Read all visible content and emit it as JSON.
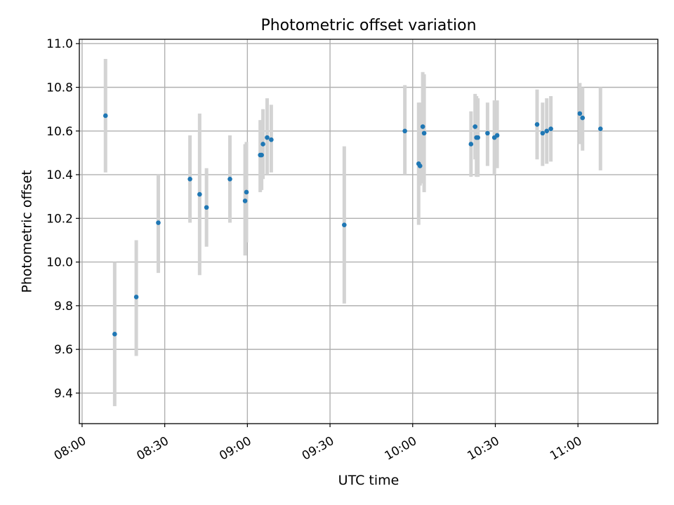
{
  "chart_data": {
    "type": "scatter",
    "title": "Photometric offset variation",
    "xlabel": "UTC time",
    "ylabel": "Photometric offset",
    "xlim": [
      "07:59",
      "11:29"
    ],
    "ylim": [
      9.26,
      11.02
    ],
    "grid": true,
    "x_ticks": [
      "08:00",
      "08:30",
      "09:00",
      "09:30",
      "10:00",
      "10:30",
      "11:00"
    ],
    "y_ticks": [
      "9.4",
      "9.6",
      "9.8",
      "10.0",
      "10.2",
      "10.4",
      "10.6",
      "10.8",
      "11.0"
    ],
    "colors": {
      "point": "#1f77b4",
      "errorbar": "#d3d3d3",
      "grid": "#b0b0b0",
      "axes": "#000000"
    },
    "points": [
      {
        "x": "08:08:30",
        "y": 10.67,
        "ylow": 10.41,
        "yhigh": 10.93
      },
      {
        "x": "08:11:50",
        "y": 9.67,
        "ylow": 9.34,
        "yhigh": 10.0
      },
      {
        "x": "08:19:40",
        "y": 9.84,
        "ylow": 9.57,
        "yhigh": 10.1
      },
      {
        "x": "08:27:40",
        "y": 10.18,
        "ylow": 9.95,
        "yhigh": 10.4
      },
      {
        "x": "08:39:10",
        "y": 10.38,
        "ylow": 10.18,
        "yhigh": 10.58
      },
      {
        "x": "08:42:40",
        "y": 10.31,
        "ylow": 9.94,
        "yhigh": 10.68
      },
      {
        "x": "08:45:10",
        "y": 10.25,
        "ylow": 10.07,
        "yhigh": 10.43
      },
      {
        "x": "08:53:40",
        "y": 10.38,
        "ylow": 10.18,
        "yhigh": 10.58
      },
      {
        "x": "08:59:10",
        "y": 10.28,
        "ylow": 10.03,
        "yhigh": 10.54
      },
      {
        "x": "08:59:40",
        "y": 10.32,
        "ylow": 10.09,
        "yhigh": 10.55
      },
      {
        "x": "09:04:40",
        "y": 10.49,
        "ylow": 10.32,
        "yhigh": 10.65
      },
      {
        "x": "09:05:10",
        "y": 10.49,
        "ylow": 10.33,
        "yhigh": 10.65
      },
      {
        "x": "09:05:40",
        "y": 10.54,
        "ylow": 10.38,
        "yhigh": 10.7
      },
      {
        "x": "09:07:10",
        "y": 10.57,
        "ylow": 10.4,
        "yhigh": 10.75
      },
      {
        "x": "09:08:40",
        "y": 10.56,
        "ylow": 10.41,
        "yhigh": 10.72
      },
      {
        "x": "09:35:10",
        "y": 10.17,
        "ylow": 9.81,
        "yhigh": 10.53
      },
      {
        "x": "09:57:10",
        "y": 10.6,
        "ylow": 10.4,
        "yhigh": 10.81
      },
      {
        "x": "10:02:10",
        "y": 10.45,
        "ylow": 10.17,
        "yhigh": 10.73
      },
      {
        "x": "10:02:40",
        "y": 10.44,
        "ylow": 10.35,
        "yhigh": 10.73
      },
      {
        "x": "10:03:40",
        "y": 10.62,
        "ylow": 10.36,
        "yhigh": 10.87
      },
      {
        "x": "10:04:10",
        "y": 10.59,
        "ylow": 10.32,
        "yhigh": 10.86
      },
      {
        "x": "10:21:10",
        "y": 10.54,
        "ylow": 10.39,
        "yhigh": 10.69
      },
      {
        "x": "10:22:40",
        "y": 10.62,
        "ylow": 10.47,
        "yhigh": 10.77
      },
      {
        "x": "10:23:10",
        "y": 10.57,
        "ylow": 10.39,
        "yhigh": 10.76
      },
      {
        "x": "10:23:40",
        "y": 10.57,
        "ylow": 10.39,
        "yhigh": 10.75
      },
      {
        "x": "10:27:10",
        "y": 10.59,
        "ylow": 10.44,
        "yhigh": 10.73
      },
      {
        "x": "10:29:40",
        "y": 10.57,
        "ylow": 10.4,
        "yhigh": 10.74
      },
      {
        "x": "10:30:40",
        "y": 10.58,
        "ylow": 10.43,
        "yhigh": 10.74
      },
      {
        "x": "10:45:10",
        "y": 10.63,
        "ylow": 10.47,
        "yhigh": 10.79
      },
      {
        "x": "10:47:10",
        "y": 10.59,
        "ylow": 10.44,
        "yhigh": 10.73
      },
      {
        "x": "10:48:40",
        "y": 10.6,
        "ylow": 10.45,
        "yhigh": 10.75
      },
      {
        "x": "10:50:10",
        "y": 10.61,
        "ylow": 10.46,
        "yhigh": 10.76
      },
      {
        "x": "11:00:40",
        "y": 10.68,
        "ylow": 10.54,
        "yhigh": 10.82
      },
      {
        "x": "11:01:40",
        "y": 10.66,
        "ylow": 10.51,
        "yhigh": 10.8
      },
      {
        "x": "11:08:10",
        "y": 10.61,
        "ylow": 10.42,
        "yhigh": 10.8
      }
    ]
  }
}
